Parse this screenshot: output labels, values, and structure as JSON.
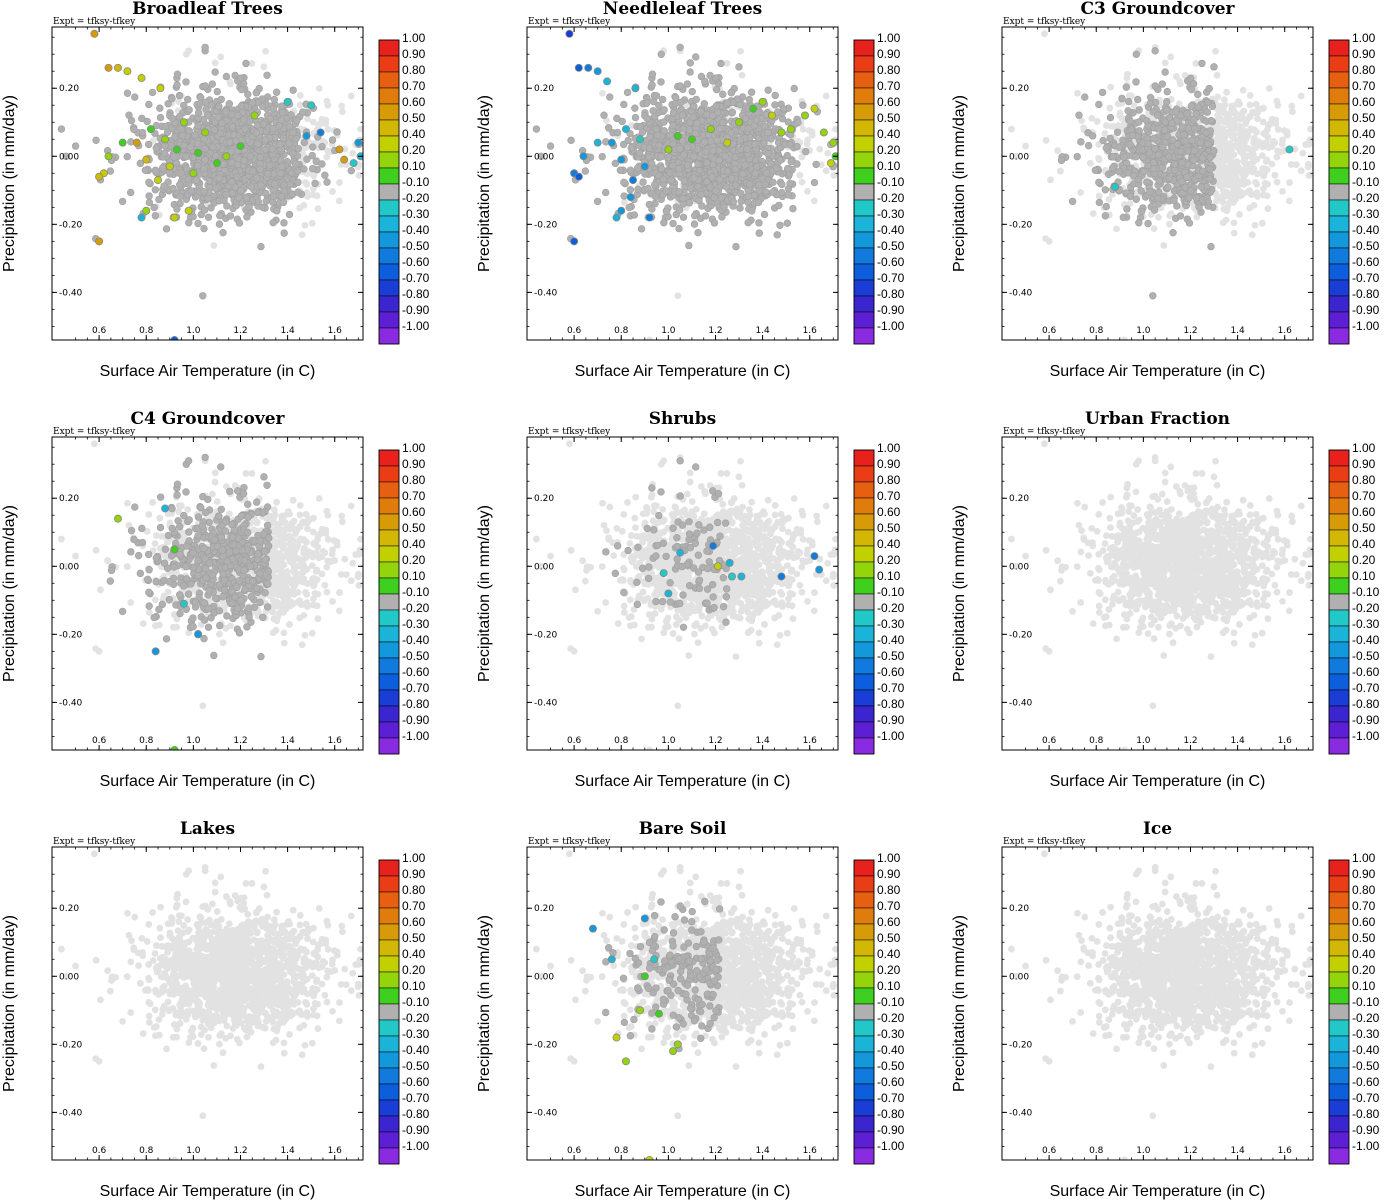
{
  "figure": {
    "colors": {
      "faint_dot": "#e2e2e2",
      "neutral_dot": "#b0b0b0",
      "neutral_edge": "#a0a0a0"
    },
    "colorbar": {
      "labels": [
        "1.00",
        "0.90",
        "0.80",
        "0.70",
        "0.60",
        "0.50",
        "0.40",
        "0.20",
        "0.10",
        "-0.10",
        "-0.20",
        "-0.30",
        "-0.40",
        "-0.50",
        "-0.60",
        "-0.70",
        "-0.80",
        "-0.90",
        "-1.00"
      ],
      "colors": [
        "#e8211c",
        "#ea3d16",
        "#e75f10",
        "#e07c0c",
        "#d89b08",
        "#d2b704",
        "#c3d000",
        "#93d40a",
        "#3fcf1e",
        "#b0b0b0",
        "#22c8c8",
        "#1bb4d8",
        "#1498dc",
        "#107bdc",
        "#0c5edc",
        "#1a3dd6",
        "#3a25cf",
        "#5d1fd4",
        "#8a2be2"
      ]
    }
  },
  "chart_data": [
    {
      "type": "scatter",
      "title": "Broadleaf Trees",
      "expt": "Expt = tfksy-tfkey",
      "xlabel": "Surface Air Temperature (in C)",
      "ylabel": "Precipitation (in mm/day)",
      "xlim": [
        0.4,
        1.72
      ],
      "ylim": [
        -0.54,
        0.38
      ],
      "xticks": [
        "0.6",
        "0.8",
        "1.0",
        "1.2",
        "1.4",
        "1.6"
      ],
      "yticks": [
        "0.20",
        "0.00",
        "-0.20",
        "-0.40"
      ],
      "background_points": "about 1500 simulations, colored by correlation; grey = |r| < 0.1",
      "colored_points": [
        {
          "x": 0.58,
          "y": 0.36,
          "c": 0.6
        },
        {
          "x": 0.64,
          "y": 0.26,
          "c": 0.6
        },
        {
          "x": 0.68,
          "y": 0.26,
          "c": 0.5
        },
        {
          "x": 0.72,
          "y": 0.25,
          "c": 0.4
        },
        {
          "x": 0.78,
          "y": 0.23,
          "c": 0.4
        },
        {
          "x": 0.6,
          "y": -0.25,
          "c": 0.6
        },
        {
          "x": 0.62,
          "y": -0.05,
          "c": 0.4
        },
        {
          "x": 0.6,
          "y": -0.06,
          "c": 0.5
        },
        {
          "x": 0.64,
          "y": 0.0,
          "c": 0.2
        },
        {
          "x": 0.7,
          "y": 0.04,
          "c": 0.1
        },
        {
          "x": 0.76,
          "y": 0.04,
          "c": 0.6
        },
        {
          "x": 0.8,
          "y": -0.01,
          "c": 0.5
        },
        {
          "x": 0.82,
          "y": 0.08,
          "c": 0.1
        },
        {
          "x": 0.85,
          "y": -0.07,
          "c": 0.4
        },
        {
          "x": 0.88,
          "y": 0.05,
          "c": 0.2
        },
        {
          "x": 0.9,
          "y": -0.03,
          "c": 0.4
        },
        {
          "x": 0.93,
          "y": 0.02,
          "c": 0.1
        },
        {
          "x": 0.96,
          "y": 0.1,
          "c": 0.2
        },
        {
          "x": 0.98,
          "y": -0.16,
          "c": 0.4
        },
        {
          "x": 1.0,
          "y": -0.05,
          "c": 0.2
        },
        {
          "x": 1.02,
          "y": 0.01,
          "c": 0.1
        },
        {
          "x": 1.05,
          "y": 0.07,
          "c": 0.2
        },
        {
          "x": 1.1,
          "y": -0.02,
          "c": 0.1
        },
        {
          "x": 1.14,
          "y": 0.0,
          "c": 0.2
        },
        {
          "x": 1.2,
          "y": 0.03,
          "c": 0.1
        },
        {
          "x": 1.26,
          "y": 0.12,
          "c": 0.2
        },
        {
          "x": 0.86,
          "y": 0.2,
          "c": 0.4
        },
        {
          "x": 0.8,
          "y": -0.16,
          "c": 0.2
        },
        {
          "x": 0.78,
          "y": -0.18,
          "c": -0.3
        },
        {
          "x": 0.92,
          "y": -0.18,
          "c": 0.4
        },
        {
          "x": 1.4,
          "y": 0.16,
          "c": -0.2
        },
        {
          "x": 1.5,
          "y": 0.15,
          "c": -0.2
        },
        {
          "x": 1.48,
          "y": 0.06,
          "c": -0.4
        },
        {
          "x": 1.54,
          "y": 0.07,
          "c": -0.5
        },
        {
          "x": 1.62,
          "y": 0.02,
          "c": 0.6
        },
        {
          "x": 1.64,
          "y": -0.01,
          "c": 0.6
        },
        {
          "x": 1.68,
          "y": -0.02,
          "c": -0.2
        },
        {
          "x": 1.7,
          "y": 0.04,
          "c": -0.4
        },
        {
          "x": 1.71,
          "y": 0.0,
          "c": -0.3
        },
        {
          "x": 0.92,
          "y": -0.54,
          "c": -0.6
        }
      ]
    },
    {
      "type": "scatter",
      "title": "Needleleaf Trees",
      "expt": "Expt = tfksy-tfkey",
      "xlabel": "Surface Air Temperature (in C)",
      "ylabel": "Precipitation (in mm/day)",
      "xlim": [
        0.4,
        1.72
      ],
      "ylim": [
        -0.54,
        0.38
      ],
      "xticks": [
        "0.6",
        "0.8",
        "1.0",
        "1.2",
        "1.4",
        "1.6"
      ],
      "yticks": [
        "0.20",
        "0.00",
        "-0.20",
        "-0.40"
      ],
      "colored_points": [
        {
          "x": 0.58,
          "y": 0.36,
          "c": -0.7
        },
        {
          "x": 0.62,
          "y": 0.26,
          "c": -0.6
        },
        {
          "x": 0.66,
          "y": 0.26,
          "c": -0.5
        },
        {
          "x": 0.7,
          "y": 0.25,
          "c": -0.4
        },
        {
          "x": 0.74,
          "y": 0.22,
          "c": -0.3
        },
        {
          "x": 0.6,
          "y": -0.25,
          "c": -0.6
        },
        {
          "x": 0.6,
          "y": -0.05,
          "c": -0.5
        },
        {
          "x": 0.62,
          "y": -0.06,
          "c": -0.6
        },
        {
          "x": 0.64,
          "y": 0.0,
          "c": -0.4
        },
        {
          "x": 0.7,
          "y": 0.04,
          "c": -0.3
        },
        {
          "x": 0.76,
          "y": 0.04,
          "c": -0.4
        },
        {
          "x": 0.8,
          "y": -0.01,
          "c": -0.4
        },
        {
          "x": 0.82,
          "y": 0.08,
          "c": -0.3
        },
        {
          "x": 0.85,
          "y": -0.07,
          "c": -0.5
        },
        {
          "x": 0.88,
          "y": 0.05,
          "c": -0.2
        },
        {
          "x": 0.9,
          "y": -0.03,
          "c": -0.4
        },
        {
          "x": 0.86,
          "y": 0.2,
          "c": -0.3
        },
        {
          "x": 0.8,
          "y": -0.16,
          "c": -0.4
        },
        {
          "x": 0.78,
          "y": -0.18,
          "c": -0.3
        },
        {
          "x": 0.92,
          "y": -0.18,
          "c": -0.5
        },
        {
          "x": 0.84,
          "y": -0.12,
          "c": -0.4
        },
        {
          "x": 1.1,
          "y": 0.05,
          "c": 0.1
        },
        {
          "x": 1.18,
          "y": 0.08,
          "c": 0.2
        },
        {
          "x": 1.25,
          "y": 0.04,
          "c": 0.4
        },
        {
          "x": 1.3,
          "y": 0.1,
          "c": 0.2
        },
        {
          "x": 1.36,
          "y": 0.14,
          "c": 0.1
        },
        {
          "x": 1.4,
          "y": 0.16,
          "c": 0.2
        },
        {
          "x": 1.44,
          "y": 0.12,
          "c": 0.4
        },
        {
          "x": 1.48,
          "y": 0.07,
          "c": 0.2
        },
        {
          "x": 1.52,
          "y": 0.08,
          "c": 0.2
        },
        {
          "x": 1.58,
          "y": 0.12,
          "c": 0.2
        },
        {
          "x": 1.62,
          "y": 0.14,
          "c": 0.4
        },
        {
          "x": 1.66,
          "y": 0.07,
          "c": 0.2
        },
        {
          "x": 1.7,
          "y": 0.04,
          "c": 0.2
        },
        {
          "x": 1.71,
          "y": 0.0,
          "c": 0.1
        },
        {
          "x": 1.69,
          "y": -0.02,
          "c": 0.4
        },
        {
          "x": 1.04,
          "y": 0.06,
          "c": 0.1
        },
        {
          "x": 1.0,
          "y": 0.02,
          "c": 0.2
        }
      ]
    },
    {
      "type": "scatter",
      "title": "C3 Groundcover",
      "expt": "Expt = tfksy-tfkey",
      "xlabel": "Surface Air Temperature (in C)",
      "ylabel": "Precipitation (in mm/day)",
      "xlim": [
        0.4,
        1.72
      ],
      "ylim": [
        -0.54,
        0.38
      ],
      "xticks": [
        "0.6",
        "0.8",
        "1.0",
        "1.2",
        "1.4",
        "1.6"
      ],
      "yticks": [
        "0.20",
        "0.00",
        "-0.20",
        "-0.40"
      ],
      "colored_points": [
        {
          "x": 1.62,
          "y": 0.02,
          "c": -0.2
        },
        {
          "x": 0.88,
          "y": -0.09,
          "c": -0.2
        }
      ]
    },
    {
      "type": "scatter",
      "title": "C4 Groundcover",
      "expt": "Expt = tfksy-tfkey",
      "xlabel": "Surface Air Temperature (in C)",
      "ylabel": "Precipitation (in mm/day)",
      "xlim": [
        0.4,
        1.72
      ],
      "ylim": [
        -0.54,
        0.38
      ],
      "xticks": [
        "0.6",
        "0.8",
        "1.0",
        "1.2",
        "1.4",
        "1.6"
      ],
      "yticks": [
        "0.20",
        "0.00",
        "-0.20",
        "-0.40"
      ],
      "colored_points": [
        {
          "x": 0.68,
          "y": 0.14,
          "c": 0.3
        },
        {
          "x": 0.88,
          "y": 0.17,
          "c": -0.3
        },
        {
          "x": 0.92,
          "y": 0.05,
          "c": 0.1
        },
        {
          "x": 0.96,
          "y": -0.11,
          "c": -0.2
        },
        {
          "x": 1.02,
          "y": -0.2,
          "c": -0.4
        },
        {
          "x": 0.84,
          "y": -0.25,
          "c": -0.4
        },
        {
          "x": 0.92,
          "y": -0.54,
          "c": 0.1
        }
      ]
    },
    {
      "type": "scatter",
      "title": "Shrubs",
      "expt": "Expt = tfksy-tfkey",
      "xlabel": "Surface Air Temperature (in C)",
      "ylabel": "Precipitation (in mm/day)",
      "xlim": [
        0.4,
        1.72
      ],
      "ylim": [
        -0.54,
        0.38
      ],
      "xticks": [
        "0.6",
        "0.8",
        "1.0",
        "1.2",
        "1.4",
        "1.6"
      ],
      "yticks": [
        "0.20",
        "0.00",
        "-0.20",
        "-0.40"
      ],
      "colored_points": [
        {
          "x": 1.05,
          "y": 0.04,
          "c": -0.3
        },
        {
          "x": 0.98,
          "y": -0.02,
          "c": -0.2
        },
        {
          "x": 1.0,
          "y": -0.08,
          "c": -0.3
        },
        {
          "x": 1.19,
          "y": 0.06,
          "c": -0.5
        },
        {
          "x": 1.21,
          "y": 0.0,
          "c": 0.4
        },
        {
          "x": 1.26,
          "y": 0.01,
          "c": -0.3
        },
        {
          "x": 1.27,
          "y": -0.03,
          "c": -0.2
        },
        {
          "x": 1.31,
          "y": -0.03,
          "c": -0.3
        },
        {
          "x": 1.48,
          "y": -0.03,
          "c": -0.5
        },
        {
          "x": 1.62,
          "y": 0.03,
          "c": -0.5
        },
        {
          "x": 1.64,
          "y": -0.01,
          "c": -0.4
        }
      ]
    },
    {
      "type": "scatter",
      "title": "Urban Fraction",
      "expt": "Expt = tfksy-tfkey",
      "xlabel": "Surface Air Temperature (in C)",
      "ylabel": "Precipitation (in mm/day)",
      "xlim": [
        0.4,
        1.72
      ],
      "ylim": [
        -0.54,
        0.38
      ],
      "xticks": [
        "0.6",
        "0.8",
        "1.0",
        "1.2",
        "1.4",
        "1.6"
      ],
      "yticks": [
        "0.20",
        "0.00",
        "-0.20",
        "-0.40"
      ],
      "colored_points": []
    },
    {
      "type": "scatter",
      "title": "Lakes",
      "expt": "Expt = tfksy-tfkey",
      "xlabel": "Surface Air Temperature (in C)",
      "ylabel": "Precipitation (in mm/day)",
      "xlim": [
        0.4,
        1.72
      ],
      "ylim": [
        -0.54,
        0.38
      ],
      "xticks": [
        "0.6",
        "0.8",
        "1.0",
        "1.2",
        "1.4",
        "1.6"
      ],
      "yticks": [
        "0.20",
        "0.00",
        "-0.20",
        "-0.40"
      ],
      "colored_points": []
    },
    {
      "type": "scatter",
      "title": "Bare Soil",
      "expt": "Expt = tfksy-tfkey",
      "xlabel": "Surface Air Temperature (in C)",
      "ylabel": "Precipitation (in mm/day)",
      "xlim": [
        0.4,
        1.72
      ],
      "ylim": [
        -0.54,
        0.38
      ],
      "xticks": [
        "0.6",
        "0.8",
        "1.0",
        "1.2",
        "1.4",
        "1.6"
      ],
      "yticks": [
        "0.20",
        "0.00",
        "-0.20",
        "-0.40"
      ],
      "colored_points": [
        {
          "x": 0.68,
          "y": 0.14,
          "c": -0.4
        },
        {
          "x": 0.76,
          "y": 0.05,
          "c": -0.3
        },
        {
          "x": 0.9,
          "y": 0.17,
          "c": -0.4
        },
        {
          "x": 0.94,
          "y": 0.05,
          "c": -0.2
        },
        {
          "x": 0.9,
          "y": 0.0,
          "c": 0.1
        },
        {
          "x": 0.88,
          "y": -0.1,
          "c": 0.2
        },
        {
          "x": 0.96,
          "y": -0.11,
          "c": 0.1
        },
        {
          "x": 1.04,
          "y": -0.2,
          "c": 0.2
        },
        {
          "x": 1.02,
          "y": -0.22,
          "c": 0.2
        },
        {
          "x": 0.78,
          "y": -0.18,
          "c": 0.4
        },
        {
          "x": 0.82,
          "y": -0.25,
          "c": 0.3
        },
        {
          "x": 0.92,
          "y": -0.54,
          "c": 0.4
        }
      ]
    },
    {
      "type": "scatter",
      "title": "Ice",
      "expt": "Expt = tfksy-tfkey",
      "xlabel": "Surface Air Temperature (in C)",
      "ylabel": "Precipitation (in mm/day)",
      "xlim": [
        0.4,
        1.72
      ],
      "ylim": [
        -0.54,
        0.38
      ],
      "xticks": [
        "0.6",
        "0.8",
        "1.0",
        "1.2",
        "1.4",
        "1.6"
      ],
      "yticks": [
        "0.20",
        "0.00",
        "-0.20",
        "-0.40"
      ],
      "colored_points": []
    }
  ]
}
